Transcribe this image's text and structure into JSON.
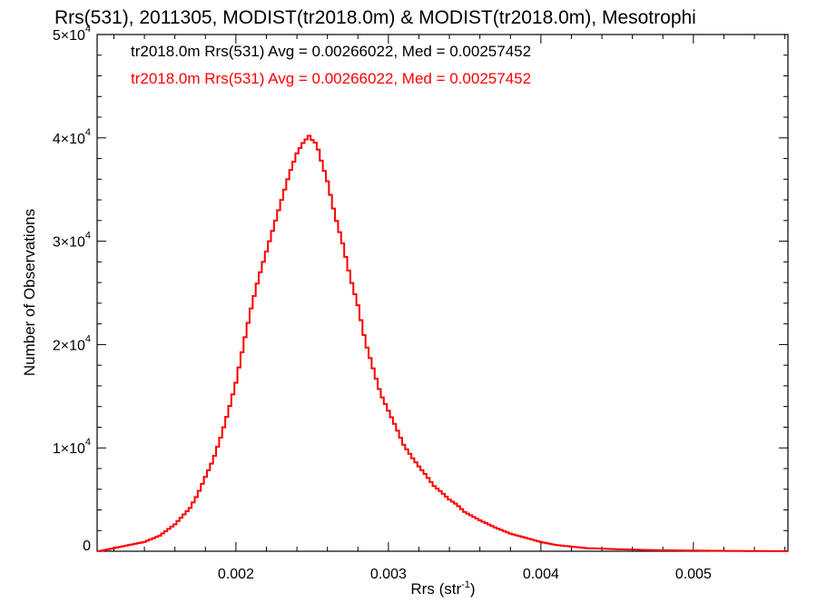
{
  "chart_data": {
    "type": "line",
    "title": "Rrs(531), 2011305, MODIST(tr2018.0m) & MODIST(tr2018.0m), Mesotrophi",
    "xlabel": "Rrs (str",
    "xlabel_sup": "-1",
    "xlabel_end": ")",
    "ylabel": "Number of Observations",
    "xlim": [
      0.00109,
      0.00562
    ],
    "ylim": [
      0,
      50000
    ],
    "x_ticks": [
      {
        "value": 0.002,
        "label": "0.002"
      },
      {
        "value": 0.003,
        "label": "0.003"
      },
      {
        "value": 0.004,
        "label": "0.004"
      },
      {
        "value": 0.005,
        "label": "0.005"
      }
    ],
    "y_ticks": [
      {
        "value": 0,
        "mant": "0",
        "exp": ""
      },
      {
        "value": 10000,
        "mant": "1×10",
        "exp": "4"
      },
      {
        "value": 20000,
        "mant": "2×10",
        "exp": "4"
      },
      {
        "value": 30000,
        "mant": "3×10",
        "exp": "4"
      },
      {
        "value": 40000,
        "mant": "4×10",
        "exp": "4"
      },
      {
        "value": 50000,
        "mant": "5×10",
        "exp": "4"
      }
    ],
    "annotations": [
      {
        "text": "tr2018.0m Rrs(531) Avg = 0.00266022, Med = 0.00257452",
        "color": "#000000"
      },
      {
        "text": "tr2018.0m Rrs(531) Avg = 0.00266022, Med = 0.00257452",
        "color": "#ff0000"
      }
    ],
    "series": [
      {
        "color": "#ff0000",
        "bin_width": 2e-05,
        "x": [
          0.0011,
          0.0012,
          0.0013,
          0.0014,
          0.0015,
          0.0016,
          0.0017,
          0.00175,
          0.0018,
          0.00185,
          0.0019,
          0.00195,
          0.002,
          0.00205,
          0.0021,
          0.00215,
          0.0022,
          0.00225,
          0.0023,
          0.00235,
          0.0024,
          0.00244,
          0.00248,
          0.0025,
          0.00253,
          0.00256,
          0.0026,
          0.00265,
          0.0027,
          0.00275,
          0.0028,
          0.00285,
          0.0029,
          0.00295,
          0.003,
          0.00305,
          0.0031,
          0.00315,
          0.0032,
          0.00325,
          0.0033,
          0.00335,
          0.0034,
          0.00345,
          0.0035,
          0.0036,
          0.0037,
          0.0038,
          0.0039,
          0.004,
          0.0041,
          0.0042,
          0.0043,
          0.0045,
          0.0047,
          0.0049,
          0.0051,
          0.0053,
          0.0055,
          0.00562
        ],
        "y": [
          0,
          300,
          600,
          900,
          1500,
          2600,
          4200,
          5500,
          7200,
          8800,
          11000,
          13500,
          16300,
          20000,
          23500,
          26500,
          29000,
          31500,
          34000,
          36500,
          38500,
          39500,
          40200,
          39800,
          39400,
          37800,
          35800,
          32500,
          29800,
          26500,
          23800,
          20200,
          17700,
          15200,
          13600,
          12000,
          10300,
          9200,
          8200,
          7300,
          6300,
          5700,
          5000,
          4500,
          3800,
          3000,
          2300,
          1700,
          1300,
          900,
          600,
          450,
          300,
          200,
          120,
          80,
          50,
          30,
          15,
          10
        ]
      }
    ]
  }
}
